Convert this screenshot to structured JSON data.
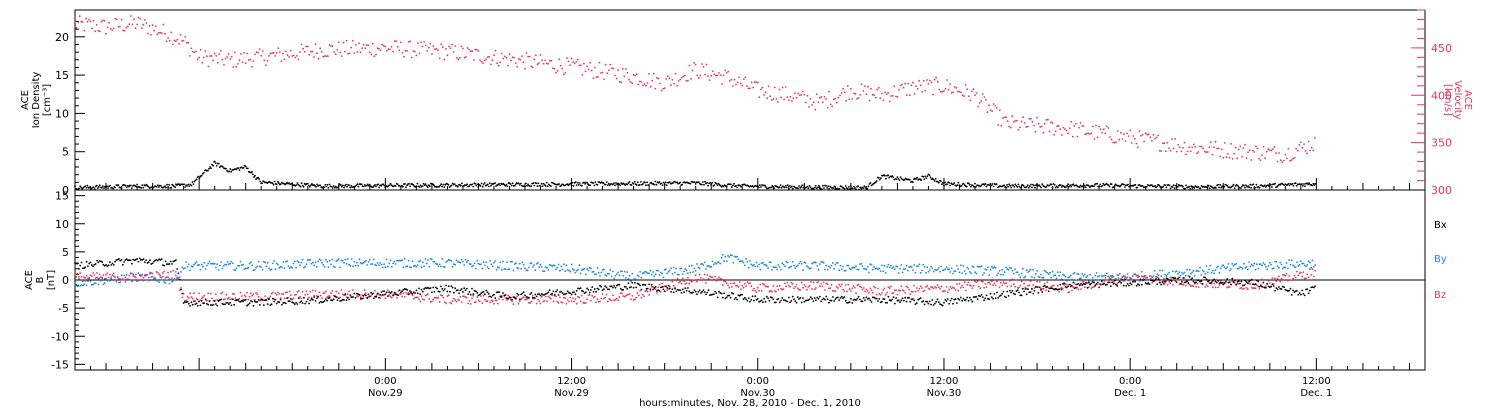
{
  "colors": {
    "black": "#000000",
    "pink": "#e8365d",
    "blue": "#1e88e5"
  },
  "xaxis": {
    "title": "hours:minutes, Nov. 28, 2010 - Dec. 1, 2010",
    "range": [
      "2010-11-28T04:00",
      "2010-12-01T19:00"
    ],
    "ticks": [
      {
        "t": "2010-11-29T00:00",
        "time": "0:00",
        "date": "Nov.29"
      },
      {
        "t": "2010-11-29T12:00",
        "time": "12:00",
        "date": "Nov.29"
      },
      {
        "t": "2010-11-30T00:00",
        "time": "0:00",
        "date": "Nov.30"
      },
      {
        "t": "2010-11-30T12:00",
        "time": "12:00",
        "date": "Nov.30"
      },
      {
        "t": "2010-12-01T00:00",
        "time": "0:00",
        "date": "Dec. 1"
      },
      {
        "t": "2010-12-01T12:00",
        "time": "12:00",
        "date": "Dec. 1"
      }
    ]
  },
  "top_panel": {
    "ylabel_left": [
      "ACE",
      "Ion Density",
      "[cm⁻³]"
    ],
    "ylabel_right": [
      "ACE",
      "Velocity",
      "[km/s]"
    ]
  },
  "bottom_panel": {
    "ylabel_left": [
      "ACE",
      "B",
      "[nT]"
    ],
    "legend": [
      "Bx",
      "By",
      "Bz"
    ]
  },
  "chart_data": [
    {
      "type": "scatter",
      "panel": "top",
      "left_axis": {
        "label": "ACE Ion Density [cm⁻³]",
        "ylim": [
          0,
          23.5
        ],
        "ticks": [
          0,
          5,
          10,
          15,
          20
        ]
      },
      "right_axis": {
        "label": "ACE Velocity [km/s]",
        "ylim": [
          300,
          490
        ],
        "ticks": [
          300,
          350,
          400,
          450
        ]
      },
      "series": [
        {
          "color": "#000000",
          "axis": "left",
          "x": [
            "2010-11-28T04:00",
            "2010-11-28T08:00",
            "2010-11-28T10:30",
            "2010-11-28T11:30",
            "2010-11-28T13:00",
            "2010-11-28T14:00",
            "2010-11-28T15:00",
            "2010-11-28T16:00",
            "2010-11-28T20:00",
            "2010-11-29T02:00",
            "2010-11-29T08:00",
            "2010-11-29T14:00",
            "2010-11-29T20:00",
            "2010-11-29T23:00",
            "2010-11-30T02:00",
            "2010-11-30T07:00",
            "2010-11-30T08:00",
            "2010-11-30T10:00",
            "2010-11-30T11:00",
            "2010-11-30T12:00",
            "2010-11-30T16:00",
            "2010-11-30T22:00",
            "2010-12-01T04:00",
            "2010-12-01T08:00",
            "2010-12-01T12:00"
          ],
          "y": [
            0.3,
            0.5,
            0.5,
            0.7,
            3.5,
            2.5,
            3.0,
            1.0,
            0.5,
            0.6,
            0.7,
            0.8,
            0.9,
            0.5,
            0.4,
            0.3,
            1.8,
            1.2,
            1.8,
            0.8,
            0.5,
            0.6,
            0.4,
            0.5,
            0.8
          ]
        },
        {
          "color": "#e8365d",
          "axis": "right",
          "x": [
            "2010-11-28T04:00",
            "2010-11-28T06:00",
            "2010-11-28T08:00",
            "2010-11-28T10:00",
            "2010-11-28T11:00",
            "2010-11-28T12:00",
            "2010-11-28T14:00",
            "2010-11-28T16:00",
            "2010-11-28T20:00",
            "2010-11-29T00:00",
            "2010-11-29T04:00",
            "2010-11-29T08:00",
            "2010-11-29T12:00",
            "2010-11-29T16:00",
            "2010-11-29T18:00",
            "2010-11-29T20:00",
            "2010-11-29T22:00",
            "2010-11-30T00:00",
            "2010-11-30T02:00",
            "2010-11-30T04:00",
            "2010-11-30T06:00",
            "2010-11-30T08:00",
            "2010-11-30T10:00",
            "2010-11-30T12:00",
            "2010-11-30T14:00",
            "2010-11-30T16:00",
            "2010-11-30T20:00",
            "2010-12-01T00:00",
            "2010-12-01T04:00",
            "2010-12-01T08:00",
            "2010-12-01T10:00",
            "2010-12-01T12:00"
          ],
          "y": [
            475,
            472,
            476,
            465,
            457,
            440,
            437,
            440,
            448,
            450,
            446,
            438,
            430,
            420,
            413,
            427,
            419,
            405,
            400,
            392,
            405,
            400,
            408,
            410,
            400,
            370,
            365,
            355,
            345,
            340,
            338,
            350
          ]
        }
      ]
    },
    {
      "type": "scatter",
      "panel": "bottom",
      "ylabel": "ACE B [nT]",
      "ylim": [
        -16,
        16
      ],
      "yticks": [
        -15,
        -10,
        -5,
        0,
        5,
        10,
        15
      ],
      "zero_line": true,
      "series": [
        {
          "name": "Bx",
          "color": "#000000",
          "x": [
            "2010-11-28T04:00",
            "2010-11-28T08:00",
            "2010-11-28T10:30",
            "2010-11-28T11:00",
            "2010-11-28T16:00",
            "2010-11-28T20:00",
            "2010-11-29T00:00",
            "2010-11-29T04:00",
            "2010-11-29T08:00",
            "2010-11-29T12:00",
            "2010-11-29T16:00",
            "2010-11-29T20:00",
            "2010-11-30T00:00",
            "2010-11-30T04:00",
            "2010-11-30T08:00",
            "2010-11-30T12:00",
            "2010-11-30T16:00",
            "2010-11-30T20:00",
            "2010-12-01T00:00",
            "2010-12-01T04:00",
            "2010-12-01T08:00",
            "2010-12-01T11:00",
            "2010-12-01T12:00"
          ],
          "y": [
            2.5,
            3.5,
            3.0,
            -4.0,
            -4.0,
            -3.5,
            -2.5,
            -1.5,
            -3.0,
            -2.0,
            -1.0,
            -2.0,
            -3.5,
            -3.5,
            -3.5,
            -4.0,
            -2.5,
            -1.0,
            -0.5,
            0.0,
            -0.5,
            -2.5,
            -1.5
          ]
        },
        {
          "name": "By",
          "color": "#1e88e5",
          "x": [
            "2010-11-28T04:00",
            "2010-11-28T08:00",
            "2010-11-28T10:30",
            "2010-11-28T11:00",
            "2010-11-28T16:00",
            "2010-11-28T20:00",
            "2010-11-29T00:00",
            "2010-11-29T04:00",
            "2010-11-29T08:00",
            "2010-11-29T12:00",
            "2010-11-29T16:00",
            "2010-11-29T20:00",
            "2010-11-29T22:00",
            "2010-11-30T00:00",
            "2010-11-30T04:00",
            "2010-11-30T08:00",
            "2010-11-30T12:00",
            "2010-11-30T16:00",
            "2010-11-30T20:00",
            "2010-12-01T00:00",
            "2010-12-01T04:00",
            "2010-12-01T08:00",
            "2010-12-01T12:00"
          ],
          "y": [
            -0.5,
            0.5,
            0.0,
            2.5,
            2.5,
            3.0,
            3.0,
            3.0,
            2.5,
            2.0,
            0.5,
            2.0,
            4.0,
            2.5,
            2.5,
            2.0,
            2.0,
            1.5,
            0.5,
            0.5,
            1.5,
            2.5,
            3.0
          ]
        },
        {
          "name": "Bz",
          "color": "#e8365d",
          "x": [
            "2010-11-28T04:00",
            "2010-11-28T08:00",
            "2010-11-28T10:30",
            "2010-11-28T11:00",
            "2010-11-28T16:00",
            "2010-11-28T20:00",
            "2010-11-29T00:00",
            "2010-11-29T04:00",
            "2010-11-29T08:00",
            "2010-11-29T12:00",
            "2010-11-29T16:00",
            "2010-11-29T20:00",
            "2010-11-30T00:00",
            "2010-11-30T04:00",
            "2010-11-30T08:00",
            "2010-11-30T12:00",
            "2010-11-30T16:00",
            "2010-11-30T20:00",
            "2010-12-01T00:00",
            "2010-12-01T04:00",
            "2010-12-01T08:00",
            "2010-12-01T12:00"
          ],
          "y": [
            0.5,
            0.5,
            1.0,
            -3.0,
            -3.0,
            -2.5,
            -2.5,
            -3.5,
            -3.5,
            -3.5,
            -3.0,
            0.5,
            -1.5,
            -1.0,
            -2.0,
            -1.5,
            -0.5,
            -1.5,
            0.5,
            -0.5,
            -1.0,
            1.5
          ]
        }
      ]
    }
  ]
}
